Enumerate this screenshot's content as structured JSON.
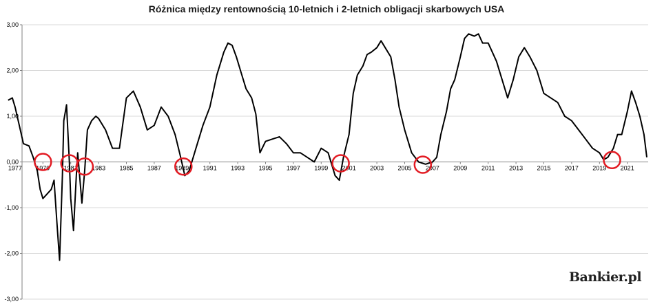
{
  "chart_data": {
    "type": "line",
    "title": "Różnica między rentownością 10-letnich i 2-letnich obligacji skarbowych USA",
    "xlabel": "",
    "ylabel": "",
    "xlim": [
      1977.5,
      2022.5
    ],
    "ylim": [
      -3,
      3
    ],
    "grid": "horizontal",
    "y_ticks": [
      "-3,00",
      "-2,00",
      "-1,00",
      "0,00",
      "1,00",
      "2,00",
      "3,00"
    ],
    "x_ticks": [
      "1977",
      "1979",
      "1981",
      "1983",
      "1985",
      "1987",
      "1989",
      "1991",
      "1993",
      "1995",
      "1997",
      "1999",
      "2001",
      "2003",
      "2005",
      "2007",
      "2009",
      "2011",
      "2013",
      "2015",
      "2017",
      "2019",
      "2021"
    ],
    "series": [
      {
        "name": "",
        "color": "#000000",
        "x": [
          1976.5,
          1976.8,
          1977.0,
          1977.3,
          1977.6,
          1978.0,
          1978.3,
          1978.6,
          1978.8,
          1979.0,
          1979.3,
          1979.6,
          1979.8,
          1980.0,
          1980.2,
          1980.4,
          1980.5,
          1980.7,
          1980.9,
          1981.0,
          1981.2,
          1981.4,
          1981.5,
          1981.8,
          1982.0,
          1982.2,
          1982.5,
          1982.8,
          1983.0,
          1983.5,
          1984.0,
          1984.5,
          1985.0,
          1985.5,
          1986.0,
          1986.5,
          1987.0,
          1987.5,
          1988.0,
          1988.5,
          1988.9,
          1989.2,
          1989.5,
          1989.8,
          1990.0,
          1990.5,
          1991.0,
          1991.5,
          1992.0,
          1992.3,
          1992.6,
          1992.9,
          1993.2,
          1993.6,
          1994.0,
          1994.3,
          1994.6,
          1995.0,
          1995.5,
          1996.0,
          1996.5,
          1997.0,
          1997.5,
          1998.0,
          1998.5,
          1999.0,
          1999.5,
          2000.0,
          2000.3,
          2000.6,
          2001.0,
          2001.3,
          2001.6,
          2002.0,
          2002.3,
          2002.6,
          2003.0,
          2003.3,
          2003.6,
          2004.0,
          2004.3,
          2004.6,
          2005.0,
          2005.5,
          2006.0,
          2006.5,
          2007.0,
          2007.3,
          2007.6,
          2008.0,
          2008.3,
          2008.6,
          2009.0,
          2009.3,
          2009.6,
          2010.0,
          2010.3,
          2010.6,
          2011.0,
          2011.3,
          2011.6,
          2012.0,
          2012.4,
          2012.8,
          2013.2,
          2013.6,
          2014.0,
          2014.5,
          2015.0,
          2015.5,
          2016.0,
          2016.5,
          2017.0,
          2017.5,
          2018.0,
          2018.5,
          2019.0,
          2019.3,
          2019.6,
          2020.0,
          2020.3,
          2020.6,
          2021.0,
          2021.3,
          2021.6,
          2021.9,
          2022.2,
          2022.4
        ],
        "values": [
          1.35,
          1.4,
          1.2,
          0.8,
          0.4,
          0.35,
          0.1,
          -0.2,
          -0.6,
          -0.8,
          -0.7,
          -0.6,
          -0.4,
          -1.3,
          -2.15,
          -0.3,
          0.9,
          1.25,
          0.0,
          -0.8,
          -1.5,
          -0.3,
          0.2,
          -0.9,
          -0.2,
          0.7,
          0.9,
          1.0,
          0.95,
          0.7,
          0.3,
          0.3,
          1.4,
          1.55,
          1.2,
          0.7,
          0.8,
          1.2,
          1.0,
          0.6,
          0.1,
          -0.3,
          -0.2,
          0.1,
          0.3,
          0.8,
          1.2,
          1.9,
          2.4,
          2.6,
          2.55,
          2.3,
          2.0,
          1.6,
          1.4,
          1.05,
          0.2,
          0.45,
          0.5,
          0.55,
          0.4,
          0.2,
          0.2,
          0.1,
          0.0,
          0.3,
          0.2,
          -0.3,
          -0.4,
          0.1,
          0.6,
          1.5,
          1.9,
          2.1,
          2.35,
          2.4,
          2.5,
          2.65,
          2.5,
          2.3,
          1.8,
          1.2,
          0.7,
          0.2,
          0.0,
          -0.05,
          0.0,
          0.1,
          0.6,
          1.1,
          1.6,
          1.8,
          2.3,
          2.7,
          2.8,
          2.75,
          2.8,
          2.6,
          2.6,
          2.4,
          2.2,
          1.8,
          1.4,
          1.8,
          2.3,
          2.5,
          2.3,
          2.0,
          1.5,
          1.4,
          1.3,
          1.0,
          0.9,
          0.7,
          0.5,
          0.3,
          0.2,
          0.05,
          0.1,
          0.3,
          0.6,
          0.6,
          1.1,
          1.55,
          1.3,
          1.0,
          0.6,
          0.1
        ]
      }
    ],
    "markers": {
      "color": "#e31b23",
      "shape": "circle",
      "x": [
        1979.0,
        1980.9,
        1982.0,
        1989.1,
        2000.4,
        2006.3,
        2019.9
      ],
      "y": [
        0.0,
        -0.03,
        -0.1,
        -0.1,
        -0.03,
        -0.06,
        0.04
      ]
    }
  },
  "watermark": "Bankier.pl"
}
